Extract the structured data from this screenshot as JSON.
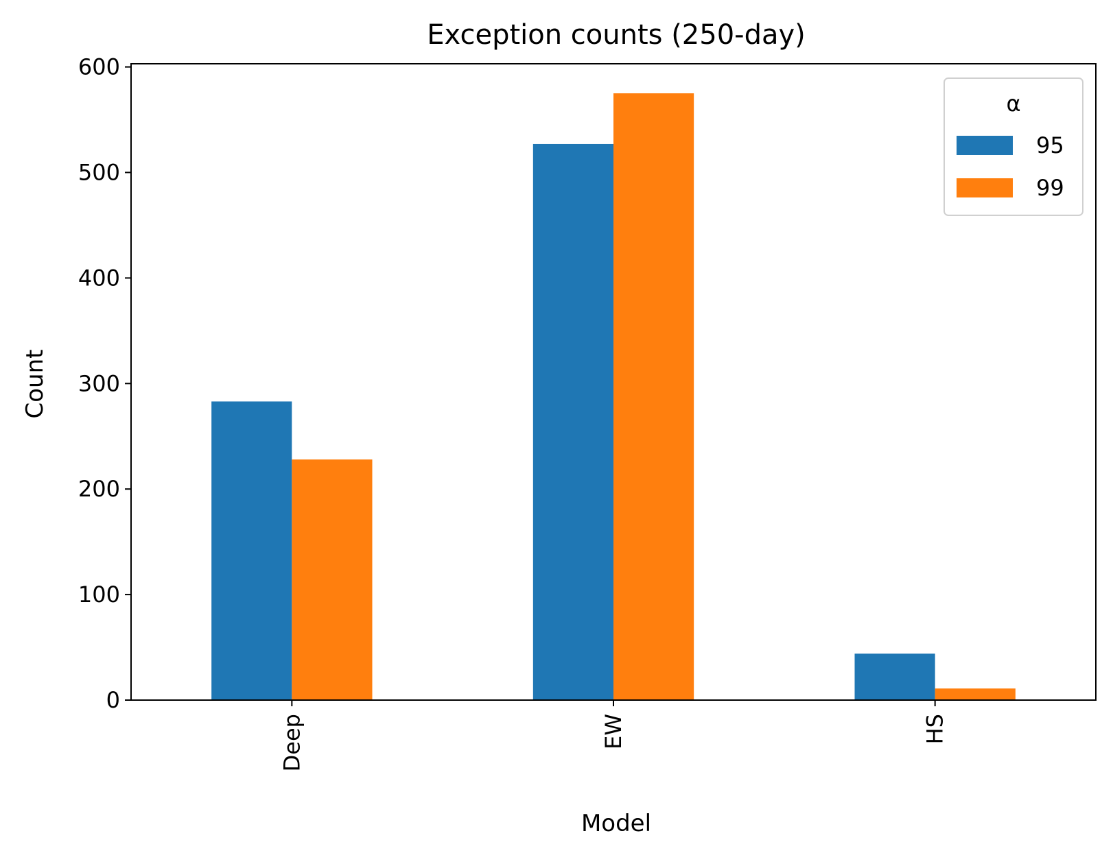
{
  "chart_data": {
    "type": "bar",
    "title": "Exception counts (250-day)",
    "xlabel": "Model",
    "ylabel": "Count",
    "categories": [
      "Deep",
      "EW",
      "HS"
    ],
    "series": [
      {
        "name": "95",
        "values": [
          283,
          527,
          44
        ],
        "color": "#1f77b4"
      },
      {
        "name": "99",
        "values": [
          228,
          575,
          11
        ],
        "color": "#ff7f0e"
      }
    ],
    "ylim": [
      0,
      603
    ],
    "yticks": [
      0,
      100,
      200,
      300,
      400,
      500,
      600
    ],
    "ytick_labels": [
      "0",
      "100",
      "200",
      "300",
      "400",
      "500",
      "600"
    ],
    "legend": {
      "title": "α",
      "placement": "top-right"
    },
    "grid": false
  }
}
